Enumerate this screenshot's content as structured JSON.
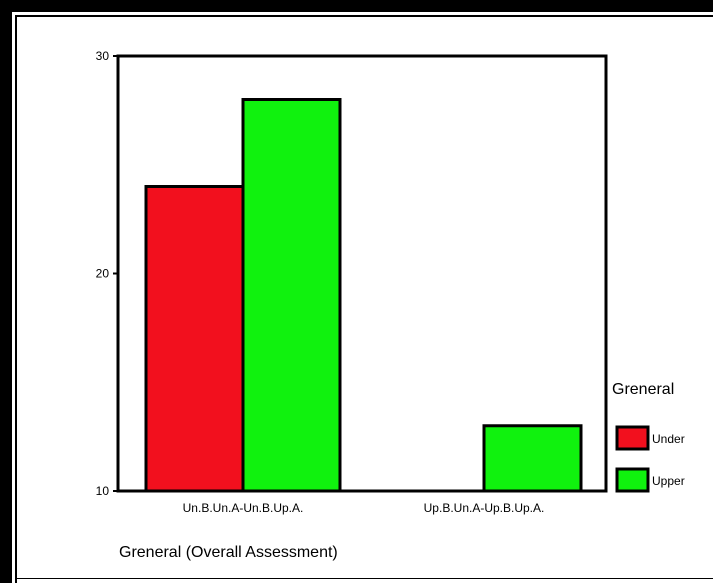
{
  "chart_data": {
    "type": "bar",
    "categories": [
      "Un.B.Un.A-Un.B.Up.A.",
      "Up.B.Un.A-Up.B.Up.A."
    ],
    "series": [
      {
        "name": "Under",
        "values": [
          24,
          null
        ],
        "color": "#f2101e"
      },
      {
        "name": "Upper",
        "values": [
          28,
          13
        ],
        "color": "#10f20e"
      }
    ],
    "title": "",
    "xlabel": "Greneral (Overall Assessment)",
    "ylabel": "",
    "ylim": [
      10,
      30
    ],
    "yticks": [
      10,
      20,
      30
    ],
    "legend_title": "Greneral",
    "legend_position": "right",
    "grid": false
  }
}
